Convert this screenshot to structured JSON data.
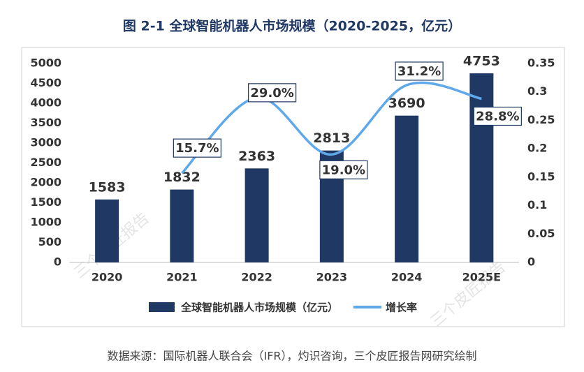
{
  "chart_data": {
    "type": "bar",
    "title": "图 2-1  全球智能机器人市场规模（2020-2025，亿元）",
    "source": "数据来源：国际机器人联合会（IFR），灼识咨询，三个皮匠报告网研究绘制",
    "watermark": "三个皮匠报告",
    "categories": [
      "2020",
      "2021",
      "2022",
      "2023",
      "2024",
      "2025E"
    ],
    "series": [
      {
        "name": "全球智能机器人市场规模（亿元）",
        "type": "bar",
        "axis": "y",
        "color": "#1f3864",
        "values": [
          1583,
          1832,
          2363,
          2813,
          3690,
          4753
        ]
      },
      {
        "name": "增长率",
        "type": "line",
        "axis": "y2",
        "color": "#5fa8ea",
        "values": [
          null,
          0.157,
          0.29,
          0.19,
          0.312,
          0.288
        ],
        "value_labels": [
          null,
          "15.7%",
          "29.0%",
          "19.0%",
          "31.2%",
          "28.8%"
        ]
      }
    ],
    "ylim": [
      0,
      5000
    ],
    "yticks": [
      0,
      500,
      1000,
      1500,
      2000,
      2500,
      3000,
      3500,
      4000,
      4500,
      5000
    ],
    "y2lim": [
      0,
      0.35
    ],
    "y2ticks": [
      0,
      0.05,
      0.1,
      0.15,
      0.2,
      0.25,
      0.3,
      0.35
    ],
    "grid": false,
    "legend": "bottom"
  }
}
